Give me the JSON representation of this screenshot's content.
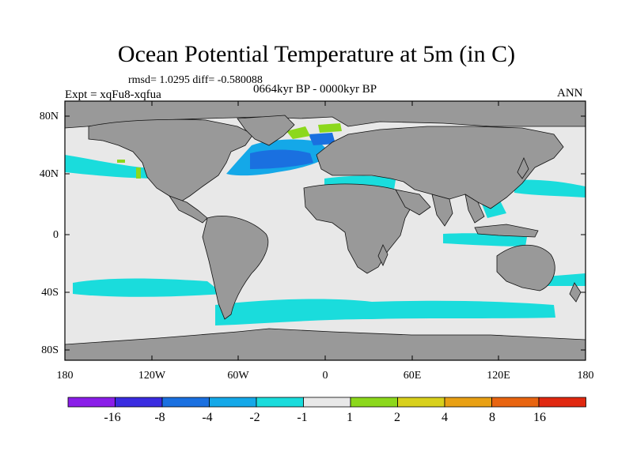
{
  "title": "Ocean Potential Temperature at 5m (in C)",
  "stats": "rmsd= 1.0295 diff= -0.580088",
  "period": "0664kyr BP - 0000kyr BP",
  "experiment": "Expt = xqFu8-xqfua",
  "season": "ANN",
  "y_axis_labels": [
    "80N",
    "40N",
    "0",
    "40S",
    "80S"
  ],
  "x_axis_labels": [
    "180",
    "120W",
    "60W",
    "0",
    "60E",
    "120E",
    "180"
  ],
  "colorbar": {
    "labels": [
      "-16",
      "-8",
      "-4",
      "-2",
      "-1",
      "1",
      "2",
      "4",
      "8",
      "16"
    ],
    "colors": [
      "#8a1ee8",
      "#3a2ce0",
      "#1a70e0",
      "#14a8e8",
      "#1adcdc",
      "#e8e8e8",
      "#8cd81c",
      "#d8d01c",
      "#e8a014",
      "#e86410",
      "#e02810"
    ]
  },
  "palette": {
    "land": "#999999",
    "ocean_neutral": "#e8e8e8",
    "anomaly_cool": "#1adcdc",
    "anomaly_cold": "#14a8e8",
    "anomaly_colder": "#1a70e0",
    "anomaly_warm": "#8cd81c"
  }
}
